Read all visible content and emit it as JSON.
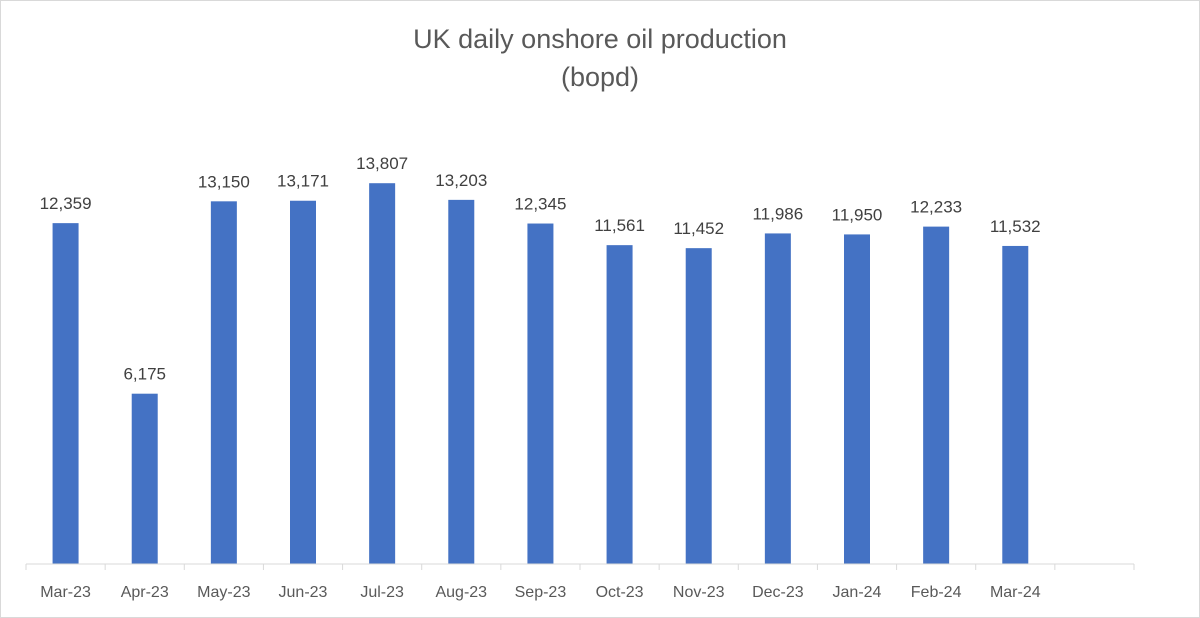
{
  "chart_data": {
    "type": "bar",
    "title_line1": "UK daily onshore oil production",
    "title_line2": "(bopd)",
    "xlabel": "",
    "ylabel": "",
    "ylim": [
      0,
      15000
    ],
    "grid": false,
    "legend": "none",
    "bar_color": "#4472C4",
    "categories": [
      "Mar-23",
      "Apr-23",
      "May-23",
      "Jun-23",
      "Jul-23",
      "Aug-23",
      "Sep-23",
      "Oct-23",
      "Nov-23",
      "Dec-23",
      "Jan-24",
      "Feb-24",
      "Mar-24"
    ],
    "values": [
      12359,
      6175,
      13150,
      13171,
      13807,
      13203,
      12345,
      11561,
      11452,
      11986,
      11950,
      12233,
      11532
    ],
    "value_labels": [
      "12,359",
      "6,175",
      "13,150",
      "13,171",
      "13,807",
      "13,203",
      "12,345",
      "11,561",
      "11,452",
      "11,986",
      "11,950",
      "12,233",
      "11,532"
    ]
  }
}
